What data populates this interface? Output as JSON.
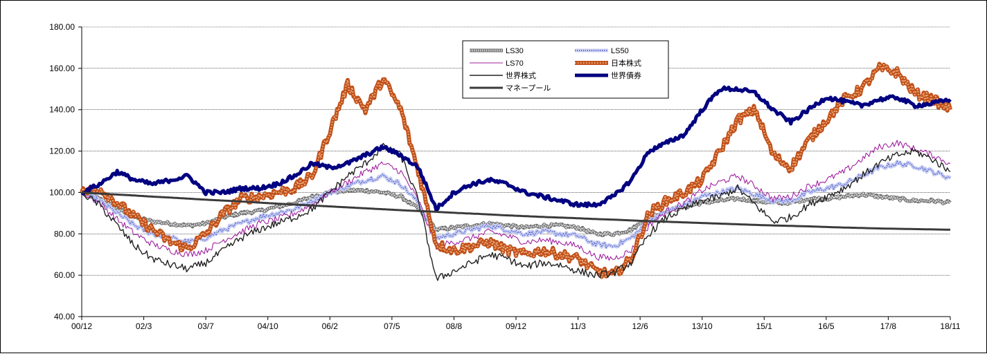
{
  "chart_data": {
    "type": "line",
    "x_ticks": [
      "00/12",
      "02/3",
      "03/7",
      "04/10",
      "06/2",
      "07/5",
      "08/8",
      "09/12",
      "11/3",
      "12/6",
      "13/10",
      "15/1",
      "16/5",
      "17/8",
      "18/11"
    ],
    "y_ticks": [
      "40.00",
      "60.00",
      "80.00",
      "100.00",
      "120.00",
      "140.00",
      "160.00",
      "180.00"
    ],
    "ylim": [
      40,
      180
    ],
    "grid": true,
    "legend_position": "top-center",
    "series": [
      {
        "name": "LS30",
        "style": "gray-hatched",
        "color": "#8a8a8a",
        "values": [
          100,
          97,
          92,
          88,
          86,
          85,
          84,
          85,
          88,
          90,
          91,
          93,
          95,
          98,
          100,
          101,
          101,
          100,
          98,
          92,
          82,
          83,
          84,
          85,
          84,
          83,
          84,
          84,
          83,
          80,
          80,
          82,
          88,
          91,
          93,
          95,
          96,
          97,
          96,
          95,
          95,
          97,
          97,
          98,
          99,
          98,
          97,
          96,
          96,
          95
        ]
      },
      {
        "name": "LS50",
        "style": "blue-dotted",
        "color": "#5b6cc8",
        "values": [
          100,
          96,
          90,
          84,
          80,
          78,
          76,
          78,
          82,
          85,
          88,
          90,
          92,
          96,
          100,
          103,
          106,
          108,
          104,
          95,
          78,
          80,
          82,
          84,
          82,
          80,
          81,
          80,
          79,
          75,
          74,
          78,
          86,
          91,
          94,
          98,
          100,
          102,
          99,
          96,
          96,
          100,
          102,
          104,
          108,
          112,
          114,
          113,
          110,
          107
        ]
      },
      {
        "name": "LS70",
        "style": "magenta-thin",
        "color": "#a020a0",
        "values": [
          100,
          95,
          87,
          80,
          75,
          72,
          70,
          72,
          77,
          81,
          85,
          87,
          90,
          94,
          100,
          105,
          110,
          114,
          110,
          96,
          74,
          76,
          78,
          81,
          79,
          76,
          77,
          76,
          74,
          69,
          68,
          72,
          84,
          91,
          95,
          101,
          105,
          108,
          103,
          97,
          98,
          103,
          106,
          110,
          116,
          122,
          124,
          121,
          118,
          114
        ]
      },
      {
        "name": "日本株式",
        "style": "orange-beaded",
        "color": "#c0501a",
        "values": [
          100,
          102,
          95,
          88,
          82,
          76,
          73,
          80,
          90,
          97,
          98,
          100,
          102,
          108,
          130,
          152,
          140,
          155,
          140,
          110,
          75,
          72,
          74,
          76,
          72,
          70,
          72,
          70,
          68,
          62,
          60,
          68,
          90,
          96,
          100,
          106,
          120,
          135,
          140,
          118,
          112,
          125,
          135,
          145,
          150,
          160,
          158,
          148,
          145,
          140
        ]
      },
      {
        "name": "世界株式",
        "style": "black-thin",
        "color": "#222222",
        "values": [
          100,
          94,
          84,
          74,
          68,
          65,
          63,
          66,
          72,
          78,
          82,
          85,
          88,
          92,
          100,
          108,
          114,
          122,
          118,
          96,
          58,
          62,
          66,
          70,
          68,
          64,
          66,
          65,
          62,
          60,
          61,
          66,
          80,
          88,
          92,
          96,
          98,
          102,
          94,
          86,
          88,
          94,
          98,
          102,
          108,
          114,
          118,
          120,
          116,
          110
        ]
      },
      {
        "name": "世界債券",
        "style": "navy-thick",
        "color": "#000080",
        "values": [
          100,
          104,
          110,
          106,
          104,
          106,
          108,
          100,
          100,
          102,
          102,
          104,
          108,
          114,
          112,
          114,
          118,
          122,
          118,
          112,
          92,
          100,
          104,
          106,
          104,
          100,
          98,
          96,
          94,
          94,
          98,
          106,
          120,
          124,
          128,
          140,
          150,
          150,
          148,
          140,
          134,
          140,
          146,
          144,
          142,
          145,
          146,
          142,
          143,
          145
        ]
      },
      {
        "name": "マネープール",
        "style": "dark-gray-thick",
        "color": "#3a3a3a",
        "values": [
          100,
          99.3,
          98.7,
          98,
          97.4,
          96.7,
          96.1,
          95.5,
          94.8,
          94.2,
          93.6,
          93,
          92.4,
          91.8,
          91.2,
          90.7,
          90.1,
          89.6,
          89,
          88.5,
          88,
          87.6,
          87.1,
          86.7,
          86.2,
          85.8,
          85.4,
          85,
          84.6,
          84.2,
          83.9,
          83.6,
          83.2,
          82.9,
          82.6,
          82.4,
          82.2,
          82
        ]
      }
    ],
    "notes_x_span": "values are evenly spaced from 00/12 to 18/11"
  }
}
